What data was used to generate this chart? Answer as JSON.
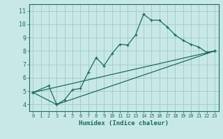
{
  "xlabel": "Humidex (Indice chaleur)",
  "bg_color": "#c8e8e8",
  "grid_color": "#a8cccc",
  "line_color": "#1a6b5a",
  "tick_color": "#1a6b5a",
  "xlim": [
    -0.5,
    23.5
  ],
  "ylim": [
    3.5,
    11.5
  ],
  "xticks": [
    0,
    1,
    2,
    3,
    4,
    5,
    6,
    7,
    8,
    9,
    10,
    11,
    12,
    13,
    14,
    15,
    16,
    17,
    18,
    19,
    20,
    21,
    22,
    23
  ],
  "yticks": [
    4,
    5,
    6,
    7,
    8,
    9,
    10,
    11
  ],
  "curve1_x": [
    0,
    2,
    3,
    4,
    5,
    6,
    7,
    8,
    9,
    10,
    11,
    12,
    13,
    14,
    15,
    16,
    17,
    18,
    19,
    20,
    21,
    22,
    23
  ],
  "curve1_y": [
    4.9,
    5.4,
    4.0,
    4.35,
    5.1,
    5.2,
    6.4,
    7.5,
    6.9,
    7.8,
    8.5,
    8.45,
    9.2,
    10.75,
    10.3,
    10.3,
    9.8,
    9.2,
    8.8,
    8.5,
    8.3,
    7.9,
    8.0
  ],
  "curve2_x": [
    0,
    23
  ],
  "curve2_y": [
    4.9,
    8.0
  ],
  "curve3_x": [
    0,
    3,
    23
  ],
  "curve3_y": [
    4.9,
    4.0,
    8.0
  ]
}
